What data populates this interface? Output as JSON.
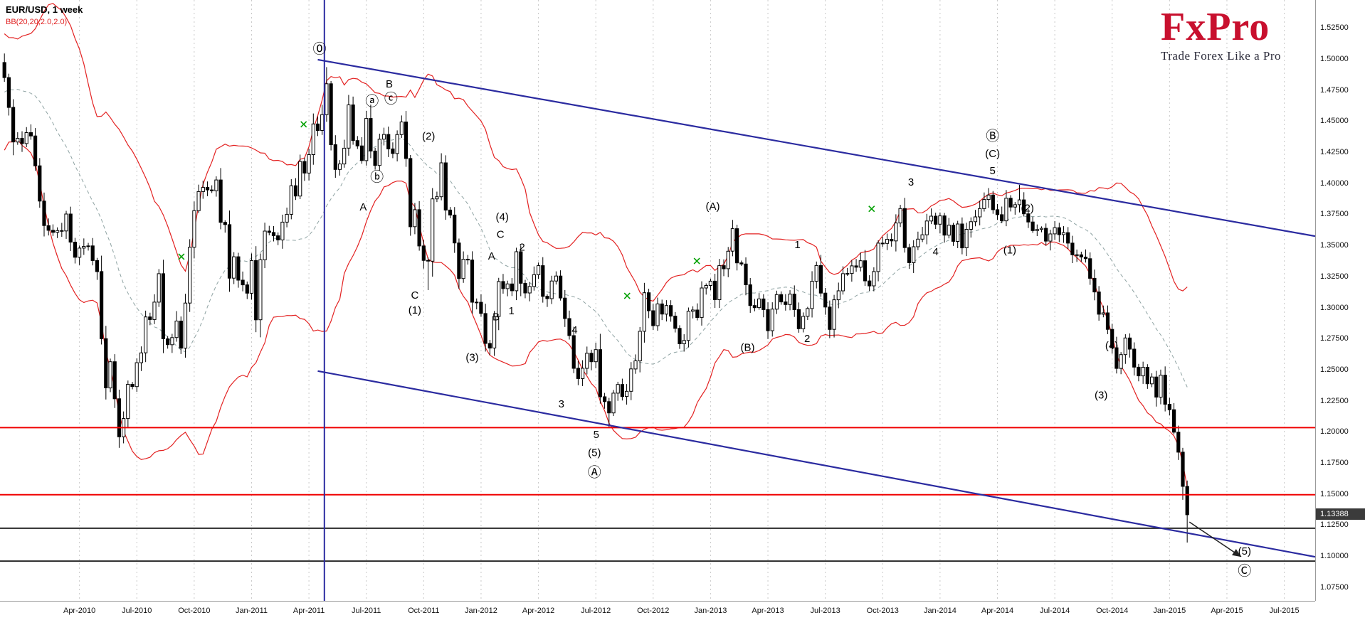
{
  "header": {
    "symbol_label": "EUR/USD,  1 week",
    "indicator_label": "BB(20,20,2.0,2.0)"
  },
  "logo": {
    "title": "FxPro",
    "tagline": "Trade Forex Like a Pro"
  },
  "colors": {
    "bb_band": "#e32222",
    "bb_mid": "#8fa3a3",
    "candle_stroke": "#000000",
    "bull_fill": "#ffffff",
    "bear_fill": "#000000",
    "trend_blue": "#2b2ba0",
    "hline_red": "#f00000",
    "hline_black": "#2a2a2a",
    "grid": "#c9c9c9",
    "marker_green": "#00a000",
    "price_tag_bg": "#3b3b3b",
    "logo_red": "#c8102e"
  },
  "chart_data": {
    "type": "candlestick",
    "title": "EUR/USD, 1 week",
    "symbol": "EUR/USD",
    "timeframe": "1 week",
    "indicator": "Bollinger Bands BB(20,20,2.0,2.0)",
    "x_axis": {
      "weeks_total": 298,
      "labels": [
        [
          "Apr-2010",
          18
        ],
        [
          "Jul-2010",
          31
        ],
        [
          "Oct-2010",
          44
        ],
        [
          "Jan-2011",
          57
        ],
        [
          "Apr-2011",
          70
        ],
        [
          "Jul-2011",
          83
        ],
        [
          "Oct-2011",
          96
        ],
        [
          "Jan-2012",
          109
        ],
        [
          "Apr-2012",
          122
        ],
        [
          "Jul-2012",
          135
        ],
        [
          "Oct-2012",
          148
        ],
        [
          "Jan-2013",
          161
        ],
        [
          "Apr-2013",
          174
        ],
        [
          "Jul-2013",
          187
        ],
        [
          "Oct-2013",
          200
        ],
        [
          "Jan-2014",
          213
        ],
        [
          "Apr-2014",
          226
        ],
        [
          "Jul-2014",
          239
        ],
        [
          "Oct-2014",
          252
        ],
        [
          "Jan-2015",
          265
        ],
        [
          "Apr-2015",
          278
        ],
        [
          "Jul-2015",
          291
        ]
      ]
    },
    "y_axis": {
      "range": {
        "top": 1.548,
        "bottom": 1.0646
      },
      "ticks": [
        1.525,
        1.5,
        1.475,
        1.45,
        1.425,
        1.4,
        1.375,
        1.35,
        1.325,
        1.3,
        1.275,
        1.25,
        1.225,
        1.2,
        1.175,
        1.15,
        1.125,
        1.1,
        1.075
      ]
    },
    "current_price": {
      "value": 1.13388,
      "label": "1.13388"
    },
    "series": {
      "start_week": 1,
      "closes": [
        1.4856,
        1.4616,
        1.4338,
        1.4367,
        1.4325,
        1.4413,
        1.4386,
        1.4146,
        1.3862,
        1.3665,
        1.3627,
        1.3611,
        1.3625,
        1.3622,
        1.3758,
        1.3532,
        1.341,
        1.3484,
        1.3498,
        1.3502,
        1.3384,
        1.3295,
        1.2755,
        1.2359,
        1.257,
        1.2272,
        1.1966,
        1.2113,
        1.2388,
        1.237,
        1.2562,
        1.2641,
        1.293,
        1.2909,
        1.3049,
        1.3278,
        1.2754,
        1.2707,
        1.2764,
        1.2897,
        1.2679,
        1.3042,
        1.3491,
        1.3785,
        1.3939,
        1.3972,
        1.3952,
        1.3945,
        1.4032,
        1.3691,
        1.3673,
        1.3242,
        1.3414,
        1.3226,
        1.3188,
        1.3121,
        1.3384,
        1.2907,
        1.339,
        1.3621,
        1.361,
        1.3583,
        1.355,
        1.3693,
        1.3756,
        1.3986,
        1.3903,
        1.4181,
        1.4088,
        1.4236,
        1.4483,
        1.443,
        1.4557,
        1.4806,
        1.4316,
        1.4117,
        1.4161,
        1.4288,
        1.4636,
        1.4349,
        1.4306,
        1.4188,
        1.4527,
        1.4265,
        1.4149,
        1.436,
        1.4398,
        1.4282,
        1.4245,
        1.4397,
        1.4499,
        1.4205,
        1.3656,
        1.3793,
        1.3501,
        1.3385,
        1.3379,
        1.388,
        1.3897,
        1.417,
        1.379,
        1.375,
        1.3525,
        1.3239,
        1.3394,
        1.3388,
        1.3049,
        1.3048,
        1.2958,
        1.2717,
        1.268,
        1.2934,
        1.3215,
        1.3158,
        1.3196,
        1.3141,
        1.3455,
        1.3201,
        1.3123,
        1.3175,
        1.327,
        1.3343,
        1.3096,
        1.3077,
        1.3219,
        1.3259,
        1.3082,
        1.2917,
        1.278,
        1.2517,
        1.2434,
        1.2517,
        1.2638,
        1.257,
        1.2667,
        1.2288,
        1.2249,
        1.2158,
        1.2317,
        1.2387,
        1.229,
        1.2332,
        1.2512,
        1.2577,
        1.2815,
        1.3125,
        1.298,
        1.286,
        1.3035,
        1.2953,
        1.3022,
        1.2937,
        1.2838,
        1.2714,
        1.2741,
        1.2976,
        1.2986,
        1.2926,
        1.3163,
        1.3183,
        1.3218,
        1.3069,
        1.3343,
        1.3318,
        1.3459,
        1.364,
        1.3365,
        1.3356,
        1.3189,
        1.3022,
        1.3005,
        1.3075,
        1.2989,
        1.2819,
        1.2993,
        1.311,
        1.3051,
        1.303,
        1.3114,
        1.2989,
        1.2835,
        1.2935,
        1.2998,
        1.3217,
        1.3344,
        1.3122,
        1.301,
        1.283,
        1.3068,
        1.314,
        1.3278,
        1.328,
        1.3341,
        1.333,
        1.3382,
        1.322,
        1.318,
        1.3295,
        1.3524,
        1.3522,
        1.3555,
        1.3542,
        1.3686,
        1.3802,
        1.3488,
        1.3367,
        1.3495,
        1.3556,
        1.3591,
        1.3702,
        1.3741,
        1.3676,
        1.3743,
        1.3588,
        1.3668,
        1.3538,
        1.3678,
        1.3486,
        1.3635,
        1.3696,
        1.3735,
        1.3802,
        1.3875,
        1.3911,
        1.3793,
        1.3753,
        1.3703,
        1.3885,
        1.3814,
        1.3833,
        1.3872,
        1.376,
        1.3694,
        1.3625,
        1.3634,
        1.3643,
        1.354,
        1.3598,
        1.3648,
        1.3592,
        1.3608,
        1.3524,
        1.343,
        1.343,
        1.3412,
        1.3399,
        1.3241,
        1.3131,
        1.2952,
        1.2963,
        1.283,
        1.2682,
        1.2516,
        1.2627,
        1.2761,
        1.2671,
        1.2526,
        1.2456,
        1.2525,
        1.2392,
        1.2447,
        1.2285,
        1.2462,
        1.2228,
        1.2184,
        1.2003,
        1.1842,
        1.1567,
        1.13388
      ],
      "wick_overrides": [
        [
          26,
          null,
          1.1877
        ],
        [
          73,
          1.494,
          null
        ],
        [
          96,
          null,
          1.3146
        ],
        [
          99,
          1.4247,
          null
        ],
        [
          110,
          null,
          1.2624
        ],
        [
          116,
          1.3487,
          null
        ],
        [
          137,
          null,
          1.2042
        ],
        [
          165,
          1.3711,
          null
        ],
        [
          203,
          1.3832,
          null
        ],
        [
          223,
          1.3967,
          null
        ],
        [
          230,
          1.3993,
          null
        ],
        [
          267,
          null,
          1.1459
        ],
        [
          268,
          null,
          1.1115
        ]
      ],
      "bb_seed": [
        1.418,
        1.4268,
        1.4331,
        1.4298,
        1.456,
        1.4571,
        1.4623,
        1.4598,
        1.473,
        1.4792,
        1.472,
        1.4888,
        1.501,
        1.4862,
        1.4903,
        1.4951,
        1.508,
        1.4862,
        1.492,
        1.4977
      ],
      "bb_period": 20,
      "bb_deviation": 2.0
    },
    "overlays": {
      "hlines": [
        {
          "price": 1.204,
          "color": "red"
        },
        {
          "price": 1.15,
          "color": "red"
        },
        {
          "price": 1.123,
          "color": "black"
        },
        {
          "price": 1.0966,
          "color": "black"
        }
      ],
      "vline": {
        "week": 73.5
      },
      "trendlines": [
        {
          "w1": 72,
          "p1": 1.5,
          "w2": 298,
          "p2": 1.358
        },
        {
          "w1": 72,
          "p1": 1.2495,
          "w2": 298,
          "p2": 1.1
        }
      ],
      "arrow": {
        "w1": 269.5,
        "p1": 1.128,
        "w2": 281,
        "p2": 1.1005
      },
      "markers": [
        [
          41.1,
          1.3415
        ],
        [
          68.8,
          1.448
        ],
        [
          142.1,
          1.31
        ],
        [
          157.9,
          1.338
        ],
        [
          197.5,
          1.38
        ]
      ]
    },
    "annotations": [
      [
        "⓪",
        72.4,
        1.508
      ],
      [
        "B",
        88.2,
        1.48
      ],
      [
        "ⓐ",
        84.3,
        1.466
      ],
      [
        "ⓒ",
        88.6,
        1.468
      ],
      [
        "ⓑ",
        85.4,
        1.405
      ],
      [
        "A",
        82.3,
        1.381
      ],
      [
        "(2)",
        97.1,
        1.438
      ],
      [
        "C",
        94.0,
        1.31
      ],
      [
        "(1)",
        94.0,
        1.298
      ],
      [
        "(3)",
        107.0,
        1.26
      ],
      [
        "(4)",
        113.8,
        1.373
      ],
      [
        "C",
        113.4,
        1.359
      ],
      [
        "A",
        111.4,
        1.3415
      ],
      [
        "2",
        118.3,
        1.3485
      ],
      [
        "B",
        112.4,
        1.2925
      ],
      [
        "1",
        115.9,
        1.2974
      ],
      [
        "4",
        130.2,
        1.282
      ],
      [
        "3",
        127.2,
        1.2225
      ],
      [
        "5",
        135.1,
        1.198
      ],
      [
        "(5)",
        134.7,
        1.1833
      ],
      [
        "Ⓐ",
        134.7,
        1.1672
      ],
      [
        "(A)",
        161.5,
        1.3814
      ],
      [
        "(B)",
        169.4,
        1.268
      ],
      [
        "1",
        180.7,
        1.3506
      ],
      [
        "2",
        182.9,
        1.275
      ],
      [
        "3",
        206.4,
        1.401
      ],
      [
        "4",
        212.0,
        1.345
      ],
      [
        "Ⓑ",
        224.9,
        1.438
      ],
      [
        "(C)",
        224.9,
        1.424
      ],
      [
        "5",
        224.9,
        1.41
      ],
      [
        "(2)",
        232.8,
        1.38
      ],
      [
        "(1)",
        228.8,
        1.3464
      ],
      [
        "(4)",
        251.9,
        1.2694
      ],
      [
        "(3)",
        249.5,
        1.2295
      ],
      [
        "(5)",
        282.0,
        1.104
      ],
      [
        "Ⓒ",
        282.0,
        1.088
      ]
    ]
  }
}
